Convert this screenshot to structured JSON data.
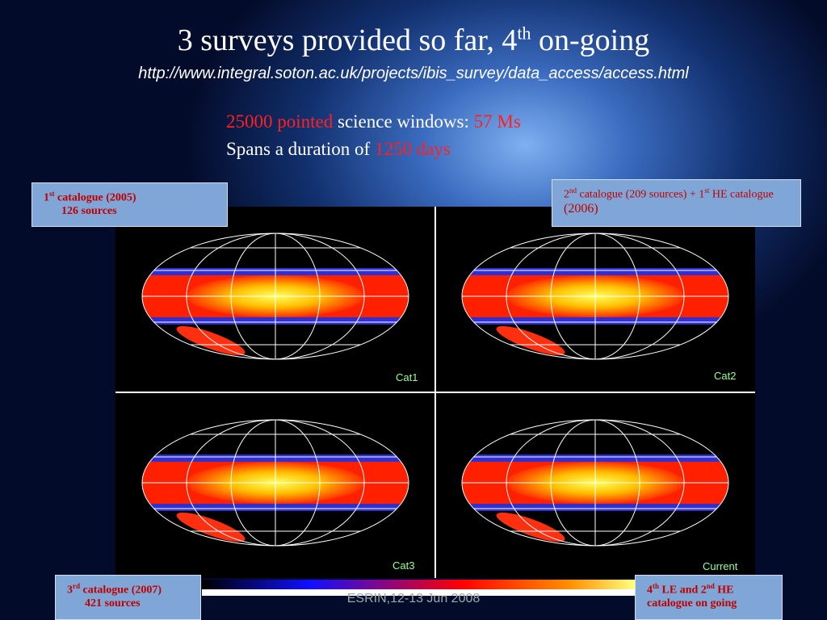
{
  "title": {
    "main": "3 surveys provided so far, 4",
    "sup": "th",
    "end": " on-going"
  },
  "url": "http://www.integral.soton.ac.uk/projects/ibis_survey/data_access/access.html",
  "summary": {
    "line1": {
      "red1": "25000 pointed",
      "text": " science windows: ",
      "red2": "57 Ms"
    },
    "line2": {
      "text": "Spans a duration of ",
      "red": "1250 days"
    }
  },
  "boxes": [
    {
      "a": "1",
      "sup1": "st",
      "b": " catalogue (2005)",
      "line2": "126 sources"
    },
    {
      "a": "2",
      "sup1": "nd",
      "b": " catalogue (209 sources) + 1",
      "sup2": "st",
      "c": " HE catalogue ",
      "d": "(2006)"
    },
    {
      "a": "3",
      "sup1": "rd",
      "b": " catalogue (2007)",
      "line2": "421 sources"
    },
    {
      "a": "4",
      "sup1": "th",
      "b": " LE and 2",
      "sup2": "nd",
      "c": " HE catalogue on going"
    }
  ],
  "maps": [
    "Cat1",
    "Cat2",
    "Cat3",
    "Current"
  ],
  "footer": "ESRIN,12-13 Jun 2008"
}
